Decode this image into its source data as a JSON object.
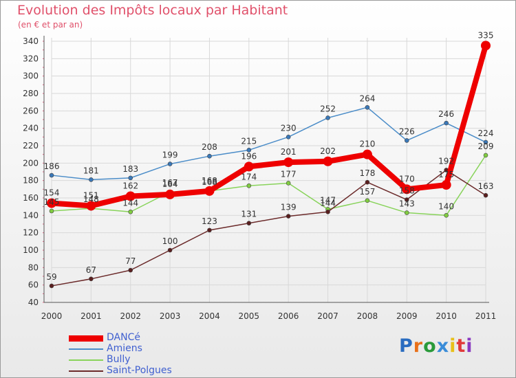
{
  "chart_data": {
    "type": "line",
    "title": "Evolution des Impôts locaux par Habitant",
    "subtitle": "(en € et par an)",
    "categories": [
      "2000",
      "2001",
      "2002",
      "2003",
      "2004",
      "2005",
      "2006",
      "2007",
      "2008",
      "2009",
      "2010",
      "2011"
    ],
    "ylim": [
      40,
      340
    ],
    "yticks": [
      40,
      60,
      80,
      100,
      120,
      140,
      160,
      180,
      200,
      220,
      240,
      260,
      280,
      300,
      320,
      340
    ],
    "series": [
      {
        "name": "Amiens",
        "color": "#4a8cc8",
        "dot": "#3a78b8",
        "values": [
          186,
          181,
          183,
          199,
          208,
          215,
          230,
          252,
          264,
          226,
          246,
          224
        ]
      },
      {
        "name": "Bully",
        "color": "#88d35a",
        "dot": "#80cc40",
        "values": [
          145,
          148,
          144,
          167,
          168,
          174,
          177,
          147,
          157,
          143,
          140,
          209
        ]
      },
      {
        "name": "Saint-Polgues",
        "color": "#6b2a2a",
        "dot": "#5a1e1e",
        "values": [
          59,
          67,
          77,
          100,
          123,
          131,
          139,
          144,
          178,
          158,
          192,
          163
        ]
      },
      {
        "name": "DANCé",
        "color": "#ee0000",
        "dot": "#ee0000",
        "values": [
          154,
          151,
          162,
          164,
          168,
          196,
          201,
          202,
          210,
          170,
          175,
          335
        ]
      }
    ],
    "legend_order": [
      "DANCé",
      "Amiens",
      "Bully",
      "Saint-Polgues"
    ]
  },
  "logo": {
    "letters": [
      "P",
      "r",
      "o",
      "x",
      "i",
      "t",
      "i"
    ],
    "colors": [
      "#2a6cc0",
      "#e8701a",
      "#2a9a3a",
      "#3a8cd8",
      "#e8c01a",
      "#e03a3a",
      "#8a3ac0"
    ]
  }
}
